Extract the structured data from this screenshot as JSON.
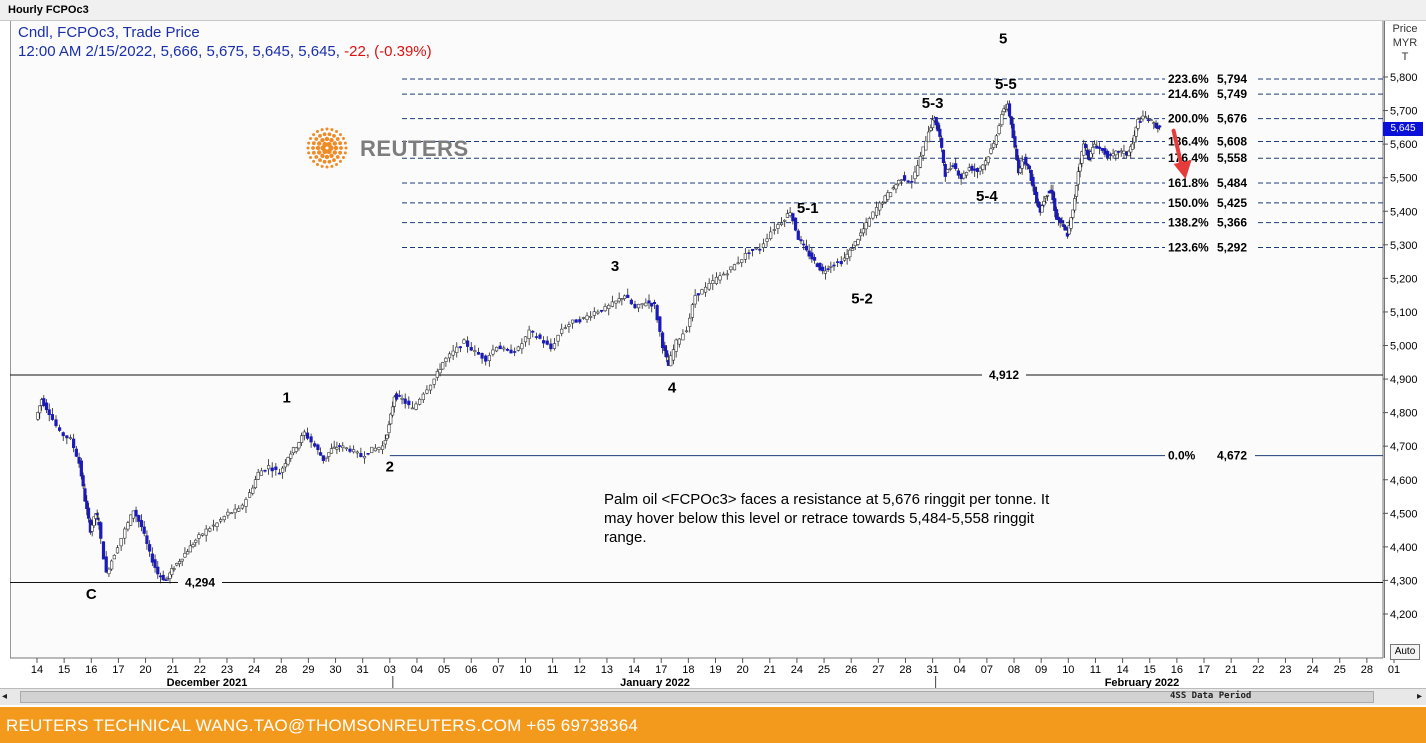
{
  "window": {
    "title": "Hourly FCPOc3"
  },
  "legend": {
    "line1": "Cndl, FCPOc3, Trade Price",
    "line2_prefix": "12:00 AM 2/15/2022, 5,666, 5,675, 5,645, 5,645, ",
    "line2_change": "-22, (-0.39%)"
  },
  "logo": {
    "text": "REUTERS"
  },
  "price_axis": {
    "header": [
      "Price",
      "MYR",
      "T"
    ],
    "last_price": "5,645",
    "auto_label": "Auto"
  },
  "scrollbar": {
    "label": "4SS Data Period",
    "left_icon": "◂",
    "right_icon": "▸"
  },
  "footer": {
    "text": "REUTERS TECHNICAL  WANG.TAO@THOMSONREUTERS.COM  +65 69738364"
  },
  "annotation": "Palm oil <FCPOc3> faces a resistance at 5,676 ringgit per tonne. It may hover below this level or retrace towards 5,484-5,558 ringgit range.",
  "colors": {
    "candle": "#1a1ab8",
    "wick": "#222222",
    "fib_line": "#1c3d7a",
    "arrow": "#e63b3b",
    "footer": "#f39a1d"
  },
  "chart_data": {
    "type": "candlestick",
    "title": "Hourly FCPOc3",
    "ylabel": "Price MYR T",
    "ylim": [
      4140,
      5840
    ],
    "y_ticks": [
      4200,
      4300,
      4400,
      4500,
      4600,
      4700,
      4800,
      4900,
      5000,
      5100,
      5200,
      5300,
      5400,
      5500,
      5600,
      5700,
      5800
    ],
    "y_tick_labels": [
      "4,200",
      "4,300",
      "4,400",
      "4,500",
      "4,600",
      "4,700",
      "4,800",
      "4,900",
      "5,000",
      "5,100",
      "5,200",
      "5,300",
      "5,400",
      "5,500",
      "5,600",
      "5,700",
      "5,800"
    ],
    "x_tick_labels": [
      "14",
      "15",
      "16",
      "17",
      "20",
      "21",
      "22",
      "23",
      "24",
      "28",
      "29",
      "30",
      "31",
      "03",
      "04",
      "05",
      "06",
      "07",
      "10",
      "11",
      "12",
      "13",
      "14",
      "17",
      "18",
      "19",
      "20",
      "21",
      "24",
      "25",
      "26",
      "27",
      "28",
      "31",
      "04",
      "07",
      "08",
      "09",
      "10",
      "11",
      "14",
      "15",
      "16",
      "17",
      "21",
      "22",
      "23",
      "24",
      "25",
      "28",
      "01"
    ],
    "month_labels": [
      "December 2021",
      "January 2022",
      "February 2022"
    ],
    "fibonacci": [
      {
        "pct": "223.6%",
        "price": 5794,
        "label": "5,794"
      },
      {
        "pct": "214.6%",
        "price": 5749,
        "label": "5,749"
      },
      {
        "pct": "200.0%",
        "price": 5676,
        "label": "5,676"
      },
      {
        "pct": "186.4%",
        "price": 5608,
        "label": "5,608"
      },
      {
        "pct": "176.4%",
        "price": 5558,
        "label": "5,558"
      },
      {
        "pct": "161.8%",
        "price": 5484,
        "label": "5,484"
      },
      {
        "pct": "150.0%",
        "price": 5425,
        "label": "5,425"
      },
      {
        "pct": "138.2%",
        "price": 5366,
        "label": "5,366"
      },
      {
        "pct": "123.6%",
        "price": 5292,
        "label": "5,292"
      },
      {
        "pct": "0.0%",
        "price": 4672,
        "label": "4,672"
      }
    ],
    "horizontal_levels": [
      {
        "price": 4912,
        "label": "4,912"
      },
      {
        "price": 4294,
        "label": "4,294"
      }
    ],
    "wave_labels": [
      {
        "text": "C",
        "date_index": 2.0,
        "price": 4245
      },
      {
        "text": "1",
        "date_index": 9.2,
        "price": 4830
      },
      {
        "text": "2",
        "date_index": 13.0,
        "price": 4625
      },
      {
        "text": "3",
        "date_index": 21.3,
        "price": 5222
      },
      {
        "text": "4",
        "date_index": 23.4,
        "price": 4860
      },
      {
        "text": "5-1",
        "date_index": 28.4,
        "price": 5395
      },
      {
        "text": "5-2",
        "date_index": 30.4,
        "price": 5125
      },
      {
        "text": "5-3",
        "date_index": 33.0,
        "price": 5708
      },
      {
        "text": "5-4",
        "date_index": 35.0,
        "price": 5430
      },
      {
        "text": "5-5",
        "date_index": 35.7,
        "price": 5764
      },
      {
        "text": "5",
        "date_index": 35.6,
        "price": 5900
      }
    ],
    "price_path": [
      [
        0.0,
        4780
      ],
      [
        0.2,
        4840
      ],
      [
        0.5,
        4800
      ],
      [
        0.9,
        4740
      ],
      [
        1.3,
        4720
      ],
      [
        1.6,
        4650
      ],
      [
        1.8,
        4540
      ],
      [
        2.0,
        4450
      ],
      [
        2.2,
        4500
      ],
      [
        2.3,
        4470
      ],
      [
        2.6,
        4320
      ],
      [
        2.9,
        4380
      ],
      [
        3.3,
        4450
      ],
      [
        3.6,
        4510
      ],
      [
        3.9,
        4460
      ],
      [
        4.2,
        4380
      ],
      [
        4.5,
        4320
      ],
      [
        4.8,
        4300
      ],
      [
        5.0,
        4330
      ],
      [
        5.3,
        4360
      ],
      [
        5.6,
        4390
      ],
      [
        5.9,
        4420
      ],
      [
        6.3,
        4450
      ],
      [
        6.7,
        4470
      ],
      [
        7.1,
        4500
      ],
      [
        7.5,
        4510
      ],
      [
        7.9,
        4560
      ],
      [
        8.2,
        4620
      ],
      [
        8.6,
        4640
      ],
      [
        9.0,
        4620
      ],
      [
        9.3,
        4670
      ],
      [
        9.6,
        4700
      ],
      [
        9.9,
        4740
      ],
      [
        10.3,
        4700
      ],
      [
        10.6,
        4660
      ],
      [
        10.9,
        4690
      ],
      [
        11.2,
        4700
      ],
      [
        11.6,
        4690
      ],
      [
        12.0,
        4670
      ],
      [
        12.4,
        4690
      ],
      [
        12.8,
        4700
      ],
      [
        13.0,
        4760
      ],
      [
        13.2,
        4850
      ],
      [
        13.5,
        4840
      ],
      [
        13.9,
        4810
      ],
      [
        14.3,
        4860
      ],
      [
        14.7,
        4900
      ],
      [
        15.0,
        4950
      ],
      [
        15.4,
        4980
      ],
      [
        15.8,
        5010
      ],
      [
        16.2,
        4980
      ],
      [
        16.6,
        4960
      ],
      [
        17.0,
        5000
      ],
      [
        17.4,
        4980
      ],
      [
        17.8,
        4990
      ],
      [
        18.2,
        5040
      ],
      [
        18.6,
        5020
      ],
      [
        19.0,
        4990
      ],
      [
        19.4,
        5050
      ],
      [
        19.8,
        5070
      ],
      [
        20.2,
        5080
      ],
      [
        20.6,
        5100
      ],
      [
        21.0,
        5110
      ],
      [
        21.4,
        5130
      ],
      [
        21.7,
        5150
      ],
      [
        22.1,
        5110
      ],
      [
        22.5,
        5130
      ],
      [
        22.8,
        5120
      ],
      [
        23.1,
        5000
      ],
      [
        23.3,
        4940
      ],
      [
        23.6,
        5010
      ],
      [
        24.0,
        5050
      ],
      [
        24.3,
        5150
      ],
      [
        24.7,
        5170
      ],
      [
        25.1,
        5200
      ],
      [
        25.5,
        5220
      ],
      [
        25.9,
        5250
      ],
      [
        26.3,
        5280
      ],
      [
        26.7,
        5290
      ],
      [
        27.1,
        5340
      ],
      [
        27.5,
        5370
      ],
      [
        27.8,
        5400
      ],
      [
        28.1,
        5320
      ],
      [
        28.4,
        5280
      ],
      [
        28.7,
        5250
      ],
      [
        29.0,
        5220
      ],
      [
        29.3,
        5240
      ],
      [
        29.7,
        5250
      ],
      [
        30.0,
        5280
      ],
      [
        30.3,
        5320
      ],
      [
        30.6,
        5360
      ],
      [
        31.0,
        5410
      ],
      [
        31.3,
        5440
      ],
      [
        31.6,
        5470
      ],
      [
        31.9,
        5500
      ],
      [
        32.3,
        5490
      ],
      [
        32.6,
        5560
      ],
      [
        32.9,
        5640
      ],
      [
        33.1,
        5680
      ],
      [
        33.3,
        5620
      ],
      [
        33.5,
        5510
      ],
      [
        33.8,
        5540
      ],
      [
        34.1,
        5500
      ],
      [
        34.4,
        5530
      ],
      [
        34.7,
        5520
      ],
      [
        35.0,
        5550
      ],
      [
        35.3,
        5600
      ],
      [
        35.6,
        5690
      ],
      [
        35.8,
        5720
      ],
      [
        36.0,
        5620
      ],
      [
        36.2,
        5520
      ],
      [
        36.4,
        5560
      ],
      [
        36.6,
        5520
      ],
      [
        36.8,
        5450
      ],
      [
        37.0,
        5400
      ],
      [
        37.2,
        5450
      ],
      [
        37.4,
        5460
      ],
      [
        37.6,
        5380
      ],
      [
        37.8,
        5360
      ],
      [
        38.0,
        5330
      ],
      [
        38.2,
        5400
      ],
      [
        38.4,
        5520
      ],
      [
        38.6,
        5600
      ],
      [
        38.8,
        5560
      ],
      [
        39.0,
        5600
      ],
      [
        39.3,
        5580
      ],
      [
        39.6,
        5560
      ],
      [
        39.9,
        5580
      ],
      [
        40.2,
        5570
      ],
      [
        40.4,
        5600
      ],
      [
        40.6,
        5670
      ],
      [
        40.9,
        5680
      ],
      [
        41.2,
        5660
      ],
      [
        41.4,
        5645
      ]
    ]
  }
}
